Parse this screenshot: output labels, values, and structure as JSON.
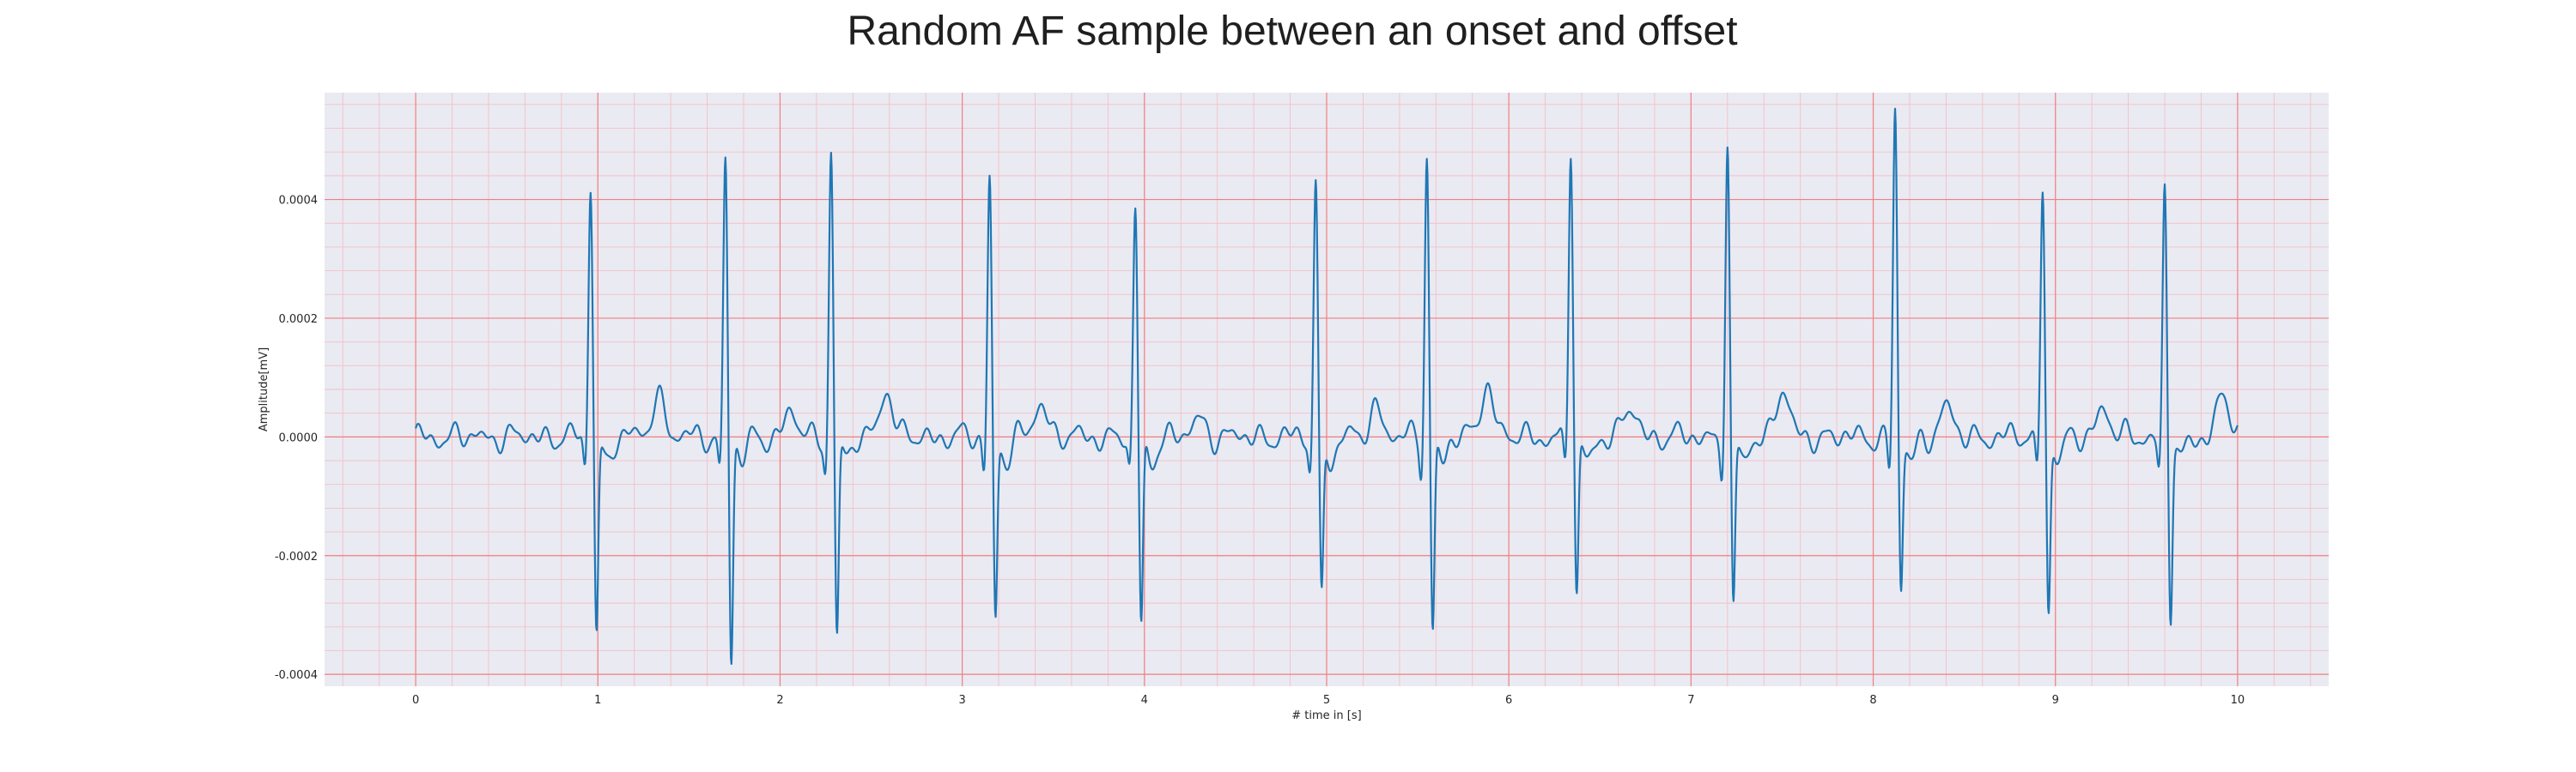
{
  "chart_data": {
    "type": "line",
    "title": "Random AF sample between an onset and offset",
    "xlabel": "# time in [s]",
    "ylabel": "Amplitude[mV]",
    "xlim": [
      -0.5,
      10.5
    ],
    "ylim": [
      -0.00042,
      0.00058
    ],
    "xticks": [
      0,
      1,
      2,
      3,
      4,
      5,
      6,
      7,
      8,
      9,
      10
    ],
    "xtick_labels": [
      "0",
      "1",
      "2",
      "3",
      "4",
      "5",
      "6",
      "7",
      "8",
      "9",
      "10"
    ],
    "yticks": [
      -0.0004,
      -0.0002,
      0.0,
      0.0002,
      0.0004
    ],
    "ytick_labels": [
      "-0.0004",
      "-0.0002",
      "0.0000",
      "0.0002",
      "0.0004"
    ],
    "grid": true,
    "minor_grid": true,
    "background_color": "#eaeaf2",
    "major_grid_color": "#f08080",
    "minor_grid_color": "#f3c0c8",
    "line_color": "#1f77b4",
    "x_start": 0.0,
    "x_end": 10.0,
    "baseline": 0.0,
    "qrs_complexes": [
      {
        "t": 0.96,
        "r": 0.00043,
        "s": -0.00033
      },
      {
        "t": 1.7,
        "r": 0.00047,
        "s": -0.00038
      },
      {
        "t": 2.28,
        "r": 0.00049,
        "s": -0.00034
      },
      {
        "t": 3.15,
        "r": 0.00044,
        "s": -0.00031
      },
      {
        "t": 3.95,
        "r": 0.00038,
        "s": -0.00032
      },
      {
        "t": 4.94,
        "r": 0.00043,
        "s": -0.00027
      },
      {
        "t": 5.55,
        "r": 0.00048,
        "s": -0.00033
      },
      {
        "t": 6.34,
        "r": 0.00049,
        "s": -0.00027
      },
      {
        "t": 7.2,
        "r": 0.00049,
        "s": -0.0003
      },
      {
        "t": 8.12,
        "r": 0.00055,
        "s": -0.00026
      },
      {
        "t": 8.93,
        "r": 0.00043,
        "s": -0.0003
      },
      {
        "t": 9.6,
        "r": 0.00042,
        "s": -0.0003
      }
    ],
    "t_waves": [
      {
        "t": 1.33,
        "a": 7e-05
      },
      {
        "t": 2.06,
        "a": 4e-05
      },
      {
        "t": 2.58,
        "a": 8e-05
      },
      {
        "t": 3.43,
        "a": 6e-05
      },
      {
        "t": 4.3,
        "a": 3e-05
      },
      {
        "t": 5.27,
        "a": 5e-05
      },
      {
        "t": 5.88,
        "a": 9e-05
      },
      {
        "t": 6.67,
        "a": 5e-05
      },
      {
        "t": 7.5,
        "a": 8e-05
      },
      {
        "t": 8.4,
        "a": 5e-05
      },
      {
        "t": 9.26,
        "a": 5e-05
      },
      {
        "t": 9.92,
        "a": 7e-05
      }
    ]
  }
}
